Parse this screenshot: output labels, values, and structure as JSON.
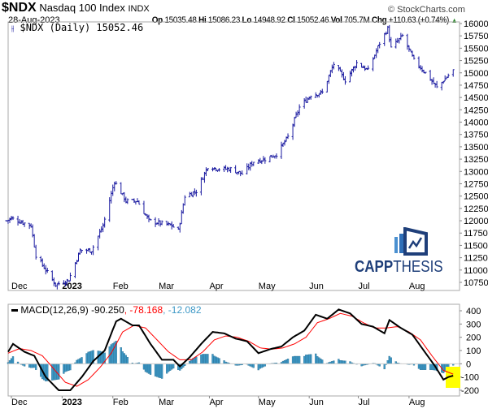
{
  "header": {
    "symbol": "$NDX",
    "name": "Nasdaq 100 Index",
    "exchange": "INDX",
    "copyright": "© StockCharts.com",
    "date": "28-Aug-2023",
    "op_label": "Op",
    "op": "15035.48",
    "hi_label": "Hi",
    "hi": "15086.23",
    "lo_label": "Lo",
    "lo": "14948.92",
    "cl_label": "Cl",
    "cl": "15052.46",
    "vol_label": "Vol",
    "vol": "705.7M",
    "chg_label": "Chg",
    "chg": "+110.63 (+0.74%)",
    "up_icon": "triangle-up-icon"
  },
  "legend": {
    "price": "$NDX (Daily) 15052.46",
    "macd_label": "MACD(12,26,9)",
    "macd": "-90.250",
    "signal": ", -78.168",
    "hist": ", -12.082"
  },
  "logo": {
    "text1": "CAPP",
    "text2": "THESIS"
  },
  "colors": {
    "price": "#1a1aa0",
    "macd": "#000000",
    "signal": "#ff0000",
    "hist": "#3d98c6",
    "highlight": "#ffff00",
    "logo_dark": "#1f3f7a",
    "logo_light": "#4a90d0"
  },
  "chart_data": [
    {
      "type": "ohlc",
      "title": "$NDX (Daily)",
      "ylim": [
        10500,
        16100
      ],
      "yticks": [
        16000,
        15750,
        15500,
        15250,
        15000,
        14750,
        14500,
        14250,
        14000,
        13750,
        13500,
        13250,
        13000,
        12750,
        12500,
        12250,
        12000,
        11750,
        11500,
        11250,
        11000,
        10750
      ],
      "xticks": [
        {
          "label": "Dec",
          "date": "2022-12-01"
        },
        {
          "label": "2023",
          "date": "2023-01-01"
        },
        {
          "label": "Feb",
          "date": "2023-02-01"
        },
        {
          "label": "Mar",
          "date": "2023-03-01"
        },
        {
          "label": "Apr",
          "date": "2023-04-01"
        },
        {
          "label": "May",
          "date": "2023-05-01"
        },
        {
          "label": "Jun",
          "date": "2023-06-01"
        },
        {
          "label": "Jul",
          "date": "2023-07-01"
        },
        {
          "label": "Aug",
          "date": "2023-08-01"
        }
      ],
      "close": [
        [
          "2022-11-28",
          12000
        ],
        [
          "2022-12-01",
          12050
        ],
        [
          "2022-12-13",
          11900
        ],
        [
          "2022-12-16",
          11300
        ],
        [
          "2022-12-22",
          11000
        ],
        [
          "2022-12-28",
          10700
        ],
        [
          "2023-01-05",
          10800
        ],
        [
          "2023-01-12",
          11400
        ],
        [
          "2023-01-19",
          11400
        ],
        [
          "2023-01-26",
          11900
        ],
        [
          "2023-02-02",
          12800
        ],
        [
          "2023-02-09",
          12400
        ],
        [
          "2023-02-16",
          12400
        ],
        [
          "2023-02-23",
          12000
        ],
        [
          "2023-03-02",
          11950
        ],
        [
          "2023-03-09",
          11900
        ],
        [
          "2023-03-13",
          11800
        ],
        [
          "2023-03-17",
          12500
        ],
        [
          "2023-03-24",
          12600
        ],
        [
          "2023-03-31",
          13100
        ],
        [
          "2023-04-07",
          13050
        ],
        [
          "2023-04-14",
          13050
        ],
        [
          "2023-04-21",
          12950
        ],
        [
          "2023-04-28",
          13200
        ],
        [
          "2023-05-05",
          13250
        ],
        [
          "2023-05-12",
          13350
        ],
        [
          "2023-05-19",
          13700
        ],
        [
          "2023-05-26",
          14300
        ],
        [
          "2023-06-02",
          14550
        ],
        [
          "2023-06-09",
          14600
        ],
        [
          "2023-06-16",
          15180
        ],
        [
          "2023-06-23",
          14850
        ],
        [
          "2023-06-30",
          15200
        ],
        [
          "2023-07-07",
          15050
        ],
        [
          "2023-07-14",
          15600
        ],
        [
          "2023-07-19",
          15900
        ],
        [
          "2023-07-21",
          15500
        ],
        [
          "2023-07-28",
          15750
        ],
        [
          "2023-08-04",
          15250
        ],
        [
          "2023-08-11",
          15000
        ],
        [
          "2023-08-18",
          14700
        ],
        [
          "2023-08-25",
          14950
        ],
        [
          "2023-08-28",
          15052
        ]
      ]
    },
    {
      "type": "line",
      "title": "MACD(12,26,9)",
      "ylim": [
        -230,
        440
      ],
      "yticks": [
        400,
        300,
        200,
        100,
        0,
        -100,
        -200
      ],
      "macd": [
        [
          "2022-11-29",
          90
        ],
        [
          "2022-12-02",
          150
        ],
        [
          "2022-12-09",
          90
        ],
        [
          "2022-12-15",
          60
        ],
        [
          "2022-12-22",
          -100
        ],
        [
          "2022-12-30",
          -200
        ],
        [
          "2023-01-06",
          -200
        ],
        [
          "2023-01-13",
          -100
        ],
        [
          "2023-01-20",
          20
        ],
        [
          "2023-01-27",
          100
        ],
        [
          "2023-02-03",
          320
        ],
        [
          "2023-02-06",
          340
        ],
        [
          "2023-02-13",
          290
        ],
        [
          "2023-02-17",
          290
        ],
        [
          "2023-02-24",
          150
        ],
        [
          "2023-03-03",
          30
        ],
        [
          "2023-03-10",
          30
        ],
        [
          "2023-03-14",
          -20
        ],
        [
          "2023-03-20",
          50
        ],
        [
          "2023-03-27",
          150
        ],
        [
          "2023-04-03",
          240
        ],
        [
          "2023-04-10",
          230
        ],
        [
          "2023-04-17",
          190
        ],
        [
          "2023-04-24",
          170
        ],
        [
          "2023-05-01",
          80
        ],
        [
          "2023-05-08",
          110
        ],
        [
          "2023-05-15",
          130
        ],
        [
          "2023-05-22",
          200
        ],
        [
          "2023-05-29",
          250
        ],
        [
          "2023-06-05",
          370
        ],
        [
          "2023-06-12",
          340
        ],
        [
          "2023-06-19",
          410
        ],
        [
          "2023-06-26",
          380
        ],
        [
          "2023-07-03",
          300
        ],
        [
          "2023-07-10",
          280
        ],
        [
          "2023-07-17",
          230
        ],
        [
          "2023-07-20",
          330
        ],
        [
          "2023-07-27",
          270
        ],
        [
          "2023-08-03",
          220
        ],
        [
          "2023-08-10",
          100
        ],
        [
          "2023-08-17",
          -20
        ],
        [
          "2023-08-22",
          -120
        ],
        [
          "2023-08-25",
          -100
        ],
        [
          "2023-08-28",
          -90
        ]
      ],
      "signal": [
        [
          "2022-11-29",
          80
        ],
        [
          "2022-12-06",
          115
        ],
        [
          "2022-12-13",
          100
        ],
        [
          "2022-12-20",
          60
        ],
        [
          "2022-12-27",
          -40
        ],
        [
          "2023-01-03",
          -140
        ],
        [
          "2023-01-10",
          -170
        ],
        [
          "2023-01-17",
          -120
        ],
        [
          "2023-01-24",
          -30
        ],
        [
          "2023-01-31",
          80
        ],
        [
          "2023-02-07",
          240
        ],
        [
          "2023-02-14",
          290
        ],
        [
          "2023-02-21",
          270
        ],
        [
          "2023-02-28",
          180
        ],
        [
          "2023-03-07",
          90
        ],
        [
          "2023-03-14",
          30
        ],
        [
          "2023-03-21",
          30
        ],
        [
          "2023-03-28",
          90
        ],
        [
          "2023-04-04",
          180
        ],
        [
          "2023-04-11",
          210
        ],
        [
          "2023-04-18",
          200
        ],
        [
          "2023-04-25",
          170
        ],
        [
          "2023-05-02",
          120
        ],
        [
          "2023-05-09",
          110
        ],
        [
          "2023-05-16",
          120
        ],
        [
          "2023-05-23",
          150
        ],
        [
          "2023-05-30",
          200
        ],
        [
          "2023-06-06",
          310
        ],
        [
          "2023-06-13",
          340
        ],
        [
          "2023-06-20",
          380
        ],
        [
          "2023-06-27",
          360
        ],
        [
          "2023-07-04",
          310
        ],
        [
          "2023-07-11",
          270
        ],
        [
          "2023-07-18",
          270
        ],
        [
          "2023-07-25",
          280
        ],
        [
          "2023-08-01",
          240
        ],
        [
          "2023-08-08",
          180
        ],
        [
          "2023-08-15",
          60
        ],
        [
          "2023-08-22",
          -50
        ],
        [
          "2023-08-28",
          -78
        ]
      ]
    }
  ]
}
